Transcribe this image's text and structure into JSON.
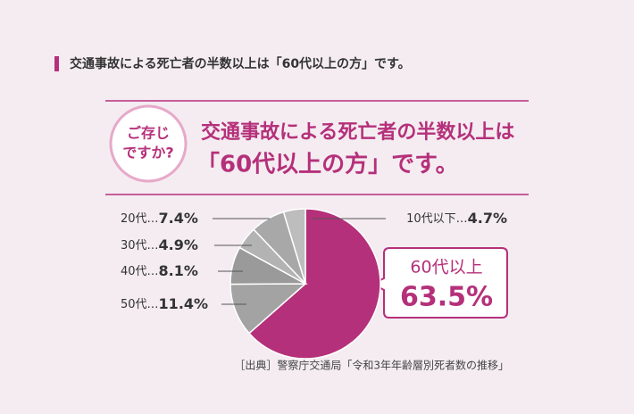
{
  "header": {
    "title": "交通事故による死亡者の半数以上は「60代以上の方」です。"
  },
  "badge": {
    "lines": [
      "ご存じ",
      "ですか?"
    ]
  },
  "headline": {
    "lines": [
      "交通事故による死亡者の半数以上は",
      "「60代以上の方」です。"
    ]
  },
  "chart_data": {
    "type": "pie",
    "categories": [
      "60代以上",
      "50代",
      "40代",
      "30代",
      "20代",
      "10代以下"
    ],
    "values": [
      63.5,
      11.4,
      8.1,
      4.9,
      7.4,
      4.7
    ],
    "value_labels": [
      "63.5%",
      "11.4%",
      "8.1%",
      "4.9%",
      "7.4%",
      "4.7%"
    ],
    "label_separator": "…",
    "colors": [
      "#b5307a",
      "#a3a3a3",
      "#9a9a9a",
      "#b3b3b3",
      "#a8a8a8",
      "#bdbdbd"
    ],
    "source": "［出典］警察庁交通局「令和3年年齢層別死者数の推移」"
  }
}
